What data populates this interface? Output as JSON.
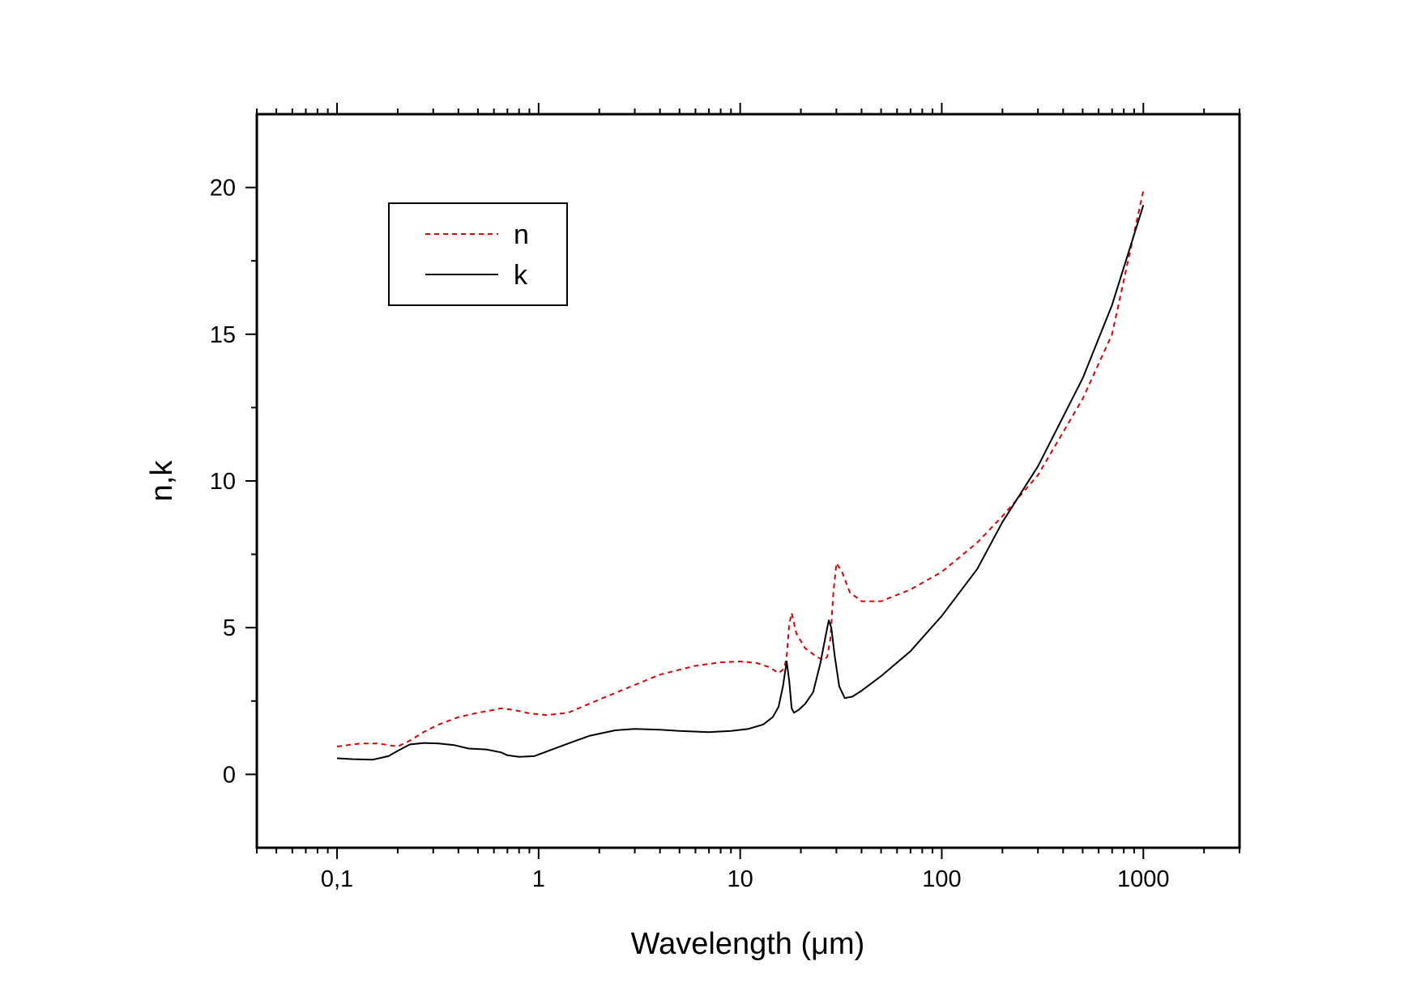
{
  "chart_data": {
    "type": "line",
    "xlabel": "Wavelength (μm)",
    "ylabel": "n,k",
    "x_scale": "log",
    "xlim": [
      0.04,
      3000
    ],
    "ylim": [
      -2.5,
      22.5
    ],
    "x_ticks": [
      {
        "value": 0.1,
        "label": "0,1"
      },
      {
        "value": 1,
        "label": "1"
      },
      {
        "value": 10,
        "label": "10"
      },
      {
        "value": 100,
        "label": "100"
      },
      {
        "value": 1000,
        "label": "1000"
      }
    ],
    "y_ticks": [
      {
        "value": 0,
        "label": "0"
      },
      {
        "value": 5,
        "label": "5"
      },
      {
        "value": 10,
        "label": "10"
      },
      {
        "value": 15,
        "label": "15"
      },
      {
        "value": 20,
        "label": "20"
      }
    ],
    "grid": false,
    "legend": "top-left",
    "series": [
      {
        "name": "n",
        "color": "#e00000",
        "style": "dashed",
        "x": [
          0.1,
          0.13,
          0.16,
          0.2,
          0.23,
          0.27,
          0.32,
          0.4,
          0.5,
          0.6,
          0.65,
          0.75,
          0.9,
          1.1,
          1.4,
          2,
          3,
          4,
          6,
          8,
          10,
          12,
          14,
          15.5,
          16.5,
          17,
          17.5,
          18,
          19,
          21,
          24,
          26,
          27,
          28,
          29,
          30,
          32,
          35,
          40,
          50,
          70,
          100,
          150,
          200,
          300,
          500,
          700,
          1000
        ],
        "y": [
          0.95,
          1.05,
          1.05,
          0.95,
          1.15,
          1.45,
          1.7,
          1.95,
          2.1,
          2.2,
          2.25,
          2.2,
          2.08,
          2.02,
          2.1,
          2.55,
          3.05,
          3.4,
          3.7,
          3.82,
          3.85,
          3.8,
          3.65,
          3.45,
          3.6,
          4.0,
          5.1,
          5.5,
          4.8,
          4.3,
          4.0,
          3.9,
          4.0,
          4.6,
          6.2,
          7.2,
          6.9,
          6.2,
          5.9,
          5.9,
          6.3,
          6.9,
          7.9,
          8.8,
          10.2,
          12.8,
          15.0,
          19.9
        ]
      },
      {
        "name": "k",
        "color": "#000000",
        "style": "solid",
        "x": [
          0.1,
          0.12,
          0.15,
          0.18,
          0.2,
          0.23,
          0.27,
          0.32,
          0.38,
          0.45,
          0.55,
          0.65,
          0.7,
          0.8,
          0.95,
          1.1,
          1.4,
          1.8,
          2.4,
          3,
          4,
          5,
          7,
          9,
          11,
          13,
          14.5,
          15.5,
          16.3,
          17,
          17.5,
          18,
          18.5,
          19.5,
          21,
          23,
          25,
          26.5,
          27.5,
          28.3,
          29.5,
          31,
          33,
          36,
          40,
          50,
          70,
          100,
          150,
          200,
          300,
          500,
          700,
          1000
        ],
        "y": [
          0.55,
          0.52,
          0.5,
          0.62,
          0.8,
          1.02,
          1.07,
          1.05,
          1.0,
          0.88,
          0.85,
          0.75,
          0.65,
          0.6,
          0.62,
          0.78,
          1.05,
          1.32,
          1.5,
          1.55,
          1.52,
          1.48,
          1.44,
          1.48,
          1.55,
          1.7,
          1.95,
          2.3,
          3.0,
          3.85,
          3.2,
          2.25,
          2.1,
          2.2,
          2.4,
          2.8,
          3.8,
          4.7,
          5.25,
          5.0,
          4.0,
          3.0,
          2.6,
          2.65,
          2.85,
          3.35,
          4.2,
          5.4,
          7.0,
          8.6,
          10.5,
          13.5,
          16.0,
          19.4
        ]
      }
    ]
  }
}
